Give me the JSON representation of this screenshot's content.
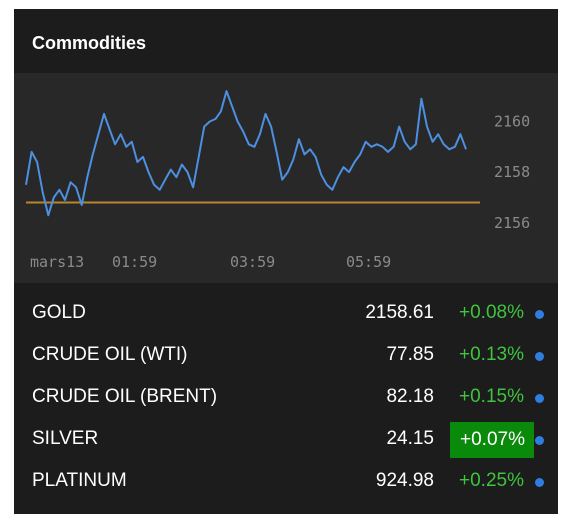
{
  "widget": {
    "title": "Commodities"
  },
  "chart_data": {
    "type": "line",
    "x_tick_labels": [
      "mars13",
      "01:59",
      "03:59",
      "05:59"
    ],
    "y_tick_labels": [
      "2160",
      "2158",
      "2156"
    ],
    "y_ticks": [
      2160,
      2158,
      2156
    ],
    "ylim": [
      2155.2,
      2161.6
    ],
    "reference_line": {
      "value": 2156.8,
      "color": "#b8862e"
    },
    "series_color": "#4d8fe0",
    "series": [
      {
        "values": [
          2157.5,
          2158.8,
          2158.4,
          2157.2,
          2156.3,
          2157.0,
          2157.3,
          2156.9,
          2157.6,
          2157.4,
          2156.7,
          2157.8,
          2158.7,
          2159.5,
          2160.3,
          2159.7,
          2159.1,
          2159.5,
          2159.0,
          2159.2,
          2158.4,
          2158.6,
          2158.0,
          2157.5,
          2157.3,
          2157.7,
          2158.1,
          2157.8,
          2158.3,
          2158.0,
          2157.4,
          2158.6,
          2159.8,
          2160.0,
          2160.1,
          2160.4,
          2161.2,
          2160.6,
          2160.0,
          2159.6,
          2159.1,
          2159.0,
          2159.5,
          2160.3,
          2159.8,
          2158.8,
          2157.7,
          2158.0,
          2158.5,
          2159.3,
          2158.7,
          2158.9,
          2158.6,
          2157.9,
          2157.5,
          2157.3,
          2157.8,
          2158.2,
          2158.0,
          2158.4,
          2158.7,
          2159.2,
          2159.0,
          2159.1,
          2159.0,
          2158.8,
          2159.0,
          2159.8,
          2159.2,
          2158.9,
          2159.1,
          2160.9,
          2159.8,
          2159.2,
          2159.5,
          2159.1,
          2158.9,
          2159.0,
          2159.5,
          2158.9
        ]
      }
    ]
  },
  "commodities": [
    {
      "name": "GOLD",
      "price": "2158.61",
      "change": "+0.08%",
      "highlight": false
    },
    {
      "name": "CRUDE OIL (WTI)",
      "price": "77.85",
      "change": "+0.13%",
      "highlight": false
    },
    {
      "name": "CRUDE OIL (BRENT)",
      "price": "82.18",
      "change": "+0.15%",
      "highlight": false
    },
    {
      "name": "SILVER",
      "price": "24.15",
      "change": "+0.07%",
      "highlight": true
    },
    {
      "name": "PLATINUM",
      "price": "924.98",
      "change": "+0.25%",
      "highlight": false
    }
  ],
  "colors": {
    "positive": "#3ec43e",
    "highlight_bg": "#0a8a0a",
    "dot": "#2e7de0"
  }
}
